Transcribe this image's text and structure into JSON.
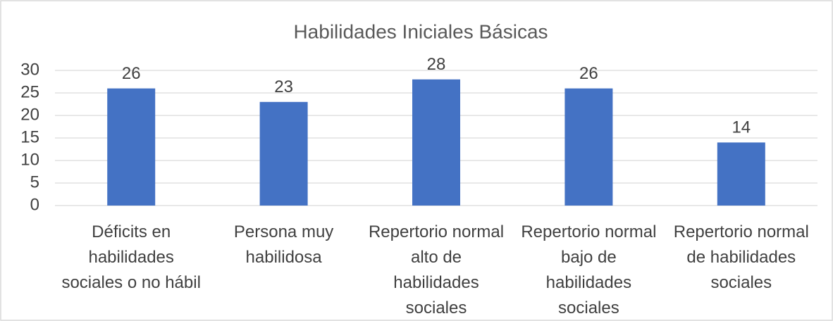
{
  "chart_data": {
    "type": "bar",
    "title": "Habilidades Iniciales Básicas",
    "categories": [
      "Déficits en habilidades sociales o no hábil",
      "Persona muy habilidosa",
      "Repertorio normal alto de habilidades sociales",
      "Repertorio normal bajo de habilidades sociales",
      "Repertorio normal de habilidades sociales"
    ],
    "values": [
      26,
      23,
      28,
      26,
      14
    ],
    "color": "#4472c4",
    "ylim": [
      0,
      30
    ],
    "yticks": [
      0,
      5,
      10,
      15,
      20,
      25,
      30
    ],
    "grid": true
  }
}
